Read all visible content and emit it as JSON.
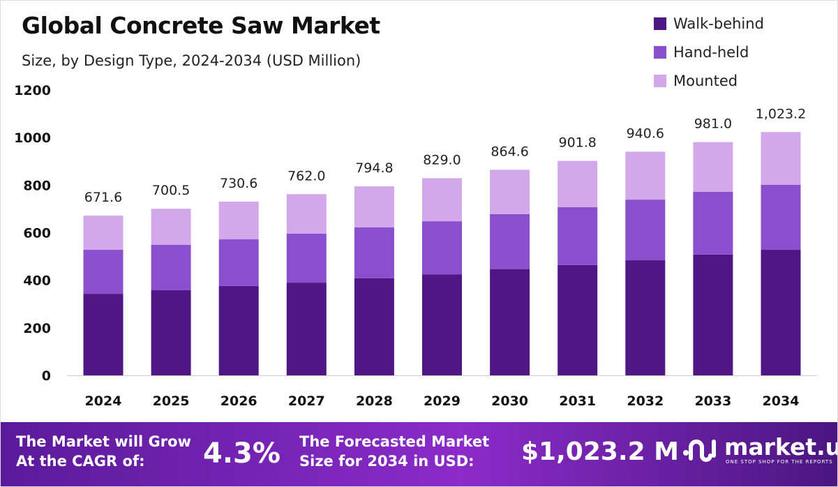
{
  "chart_data": {
    "type": "bar",
    "stacked": true,
    "title": "Global Concrete Saw Market",
    "subtitle": "Size, by Design Type, 2024-2034 (USD Million)",
    "categories": [
      "2024",
      "2025",
      "2026",
      "2027",
      "2028",
      "2029",
      "2030",
      "2031",
      "2032",
      "2033",
      "2034"
    ],
    "series": [
      {
        "name": "Walk-behind",
        "color": "#4f1783",
        "values": [
          343,
          358,
          376,
          390,
          408,
          425,
          446,
          464,
          484,
          508,
          528
        ]
      },
      {
        "name": "Hand-held",
        "color": "#8a4fcc",
        "values": [
          185,
          191,
          196,
          206,
          214,
          223,
          232,
          243,
          255,
          264,
          273
        ]
      },
      {
        "name": "Mounted",
        "color": "#d2a8ea",
        "values": [
          143.6,
          151.5,
          158.6,
          166,
          172.8,
          181,
          186.6,
          194.8,
          201.6,
          209,
          222.2
        ]
      }
    ],
    "totals_labels": [
      "671.6",
      "700.5",
      "730.6",
      "762.0",
      "794.8",
      "829.0",
      "864.6",
      "901.8",
      "940.6",
      "981.0",
      "1,023.2"
    ],
    "totals": [
      671.6,
      700.5,
      730.6,
      762.0,
      794.8,
      829.0,
      864.6,
      901.8,
      940.6,
      981.0,
      1023.2
    ],
    "ylim": [
      0,
      1200
    ],
    "yticks": [
      "0",
      "200",
      "400",
      "600",
      "800",
      "1000",
      "1200"
    ],
    "grid": false,
    "legend_position": "top-right"
  },
  "banner": {
    "cagr_text_1": "The Market will Grow",
    "cagr_text_2": "At the CAGR of:",
    "cagr_value": "4.3%",
    "forecast_text_1": "The Forecasted Market",
    "forecast_text_2": "Size for 2034 in USD:",
    "forecast_value": "$1,023.2 M",
    "logo_name": "market.us",
    "logo_tagline": "ONE STOP SHOP FOR THE REPORTS"
  }
}
